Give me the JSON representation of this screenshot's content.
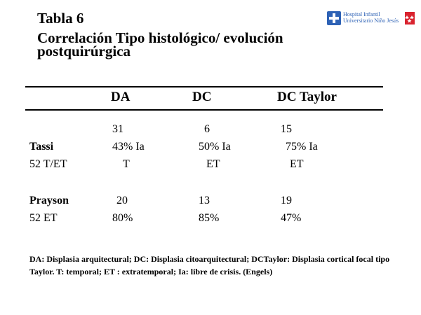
{
  "slide": {
    "title": "Tabla 6",
    "subtitle_line1": "Correlación Tipo histológico/ evolución",
    "subtitle_line2": "postquirúrgica"
  },
  "logo": {
    "hospital_line1": "Hospital Infantil",
    "hospital_line2": "Universitario Niño Jesús",
    "brand_color": "#2e62b5",
    "madrid_color": "#d9232e",
    "icon": "hospital-cross-icon"
  },
  "table": {
    "headers": [
      "DA",
      "DC",
      "DC Taylor"
    ],
    "rows": [
      {
        "label": "",
        "values": [
          "31",
          "6",
          "15"
        ]
      },
      {
        "label": "Tassi",
        "values": [
          "43% Ia",
          "50% Ia",
          "75% Ia"
        ]
      },
      {
        "label": "52 T/ET",
        "values": [
          "T",
          "ET",
          "ET"
        ]
      },
      {
        "label": "Prayson",
        "values": [
          "20",
          "13",
          "19"
        ]
      },
      {
        "label": "52 ET",
        "values": [
          "80%",
          "85%",
          "47%"
        ]
      }
    ]
  },
  "footnote": "DA: Displasia arquitectural; DC: Displasia citoarquitectural; DCTaylor: Displasia cortical focal tipo Taylor. T: temporal; ET : extratemporal;  Ia: libre de crisis. (Engels)"
}
